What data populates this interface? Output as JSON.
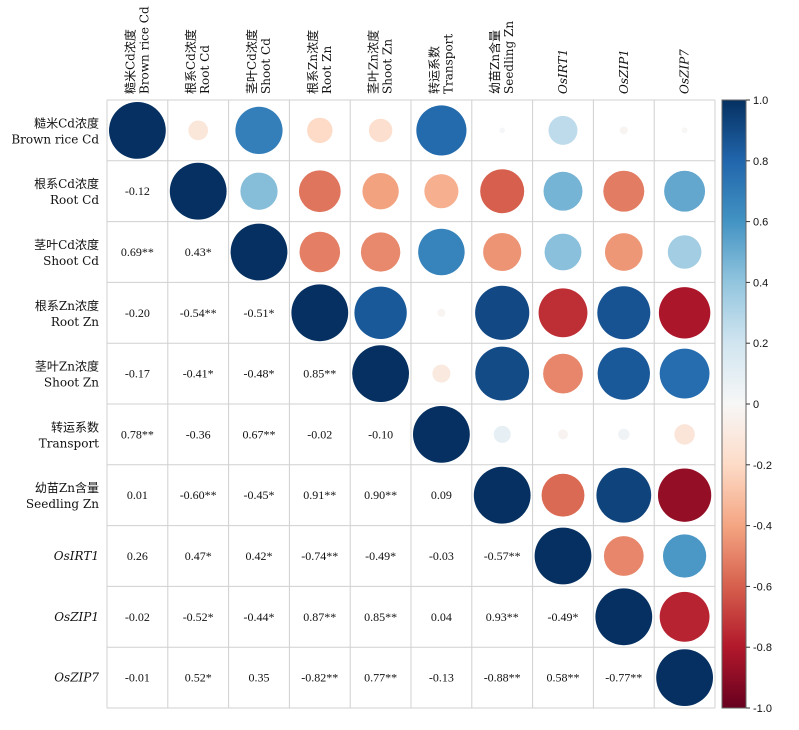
{
  "chart_data": {
    "type": "heatmap",
    "title": "",
    "variables": [
      {
        "zh": "糙米Cd浓度",
        "en": "Brown rice Cd",
        "italic": false
      },
      {
        "zh": "根系Cd浓度",
        "en": "Root Cd",
        "italic": false
      },
      {
        "zh": "茎叶Cd浓度",
        "en": "Shoot Cd",
        "italic": false
      },
      {
        "zh": "根系Zn浓度",
        "en": "Root Zn",
        "italic": false
      },
      {
        "zh": "茎叶Zn浓度",
        "en": "Shoot Zn",
        "italic": false
      },
      {
        "zh": "转运系数",
        "en": "Transport",
        "italic": false
      },
      {
        "zh": "幼苗Zn含量",
        "en": "Seedling Zn",
        "italic": false
      },
      {
        "zh": "",
        "en": "OsIRT1",
        "italic": true
      },
      {
        "zh": "",
        "en": "OsZIP1",
        "italic": true
      },
      {
        "zh": "",
        "en": "OsZIP7",
        "italic": true
      }
    ],
    "lower_labels": [
      [],
      [
        "-0.12"
      ],
      [
        "0.69**",
        "0.43*"
      ],
      [
        "-0.20",
        "-0.54**",
        "-0.51*"
      ],
      [
        "-0.17",
        "-0.41*",
        "-0.48*",
        "0.85**"
      ],
      [
        "0.78**",
        "-0.36",
        "0.67**",
        "-0.02",
        "-0.10"
      ],
      [
        "0.01",
        "-0.60**",
        "-0.45*",
        "0.91**",
        "0.90**",
        "0.09"
      ],
      [
        "0.26",
        "0.47*",
        "0.42*",
        "-0.74**",
        "-0.49*",
        "-0.03",
        "-0.57**"
      ],
      [
        "-0.02",
        "-0.52*",
        "-0.44*",
        "0.87**",
        "0.85**",
        "0.04",
        "0.93**",
        "-0.49*"
      ],
      [
        "-0.01",
        "0.52*",
        "0.35",
        "-0.82**",
        "0.77**",
        "-0.13",
        "-0.88**",
        "0.58**",
        "-0.77**"
      ]
    ],
    "colorbar": {
      "range": [
        -1.0,
        1.0
      ],
      "ticks": [
        "1.0",
        "0.8",
        "0.6",
        "0.4",
        "0.2",
        "0",
        "-0.2",
        "-0.4",
        "-0.6",
        "-0.8",
        "-1.0"
      ]
    }
  }
}
